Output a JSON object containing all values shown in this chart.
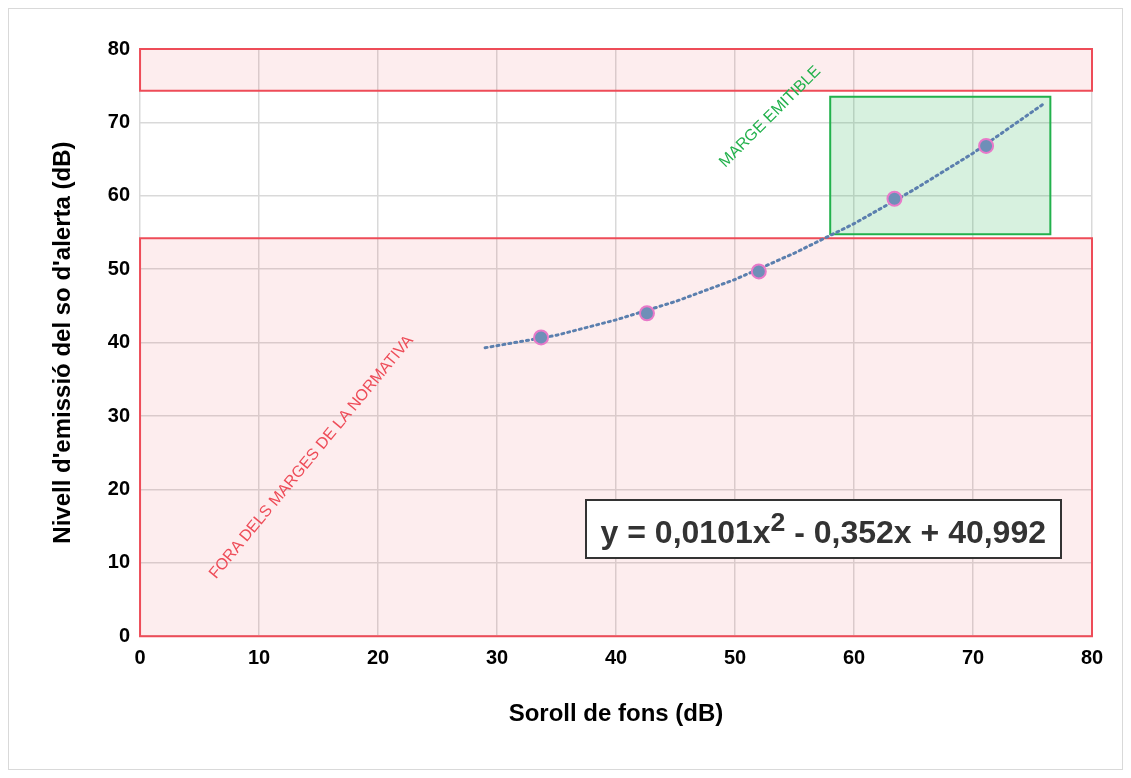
{
  "chart_data": {
    "type": "scatter",
    "xlabel": "Soroll de fons (dB)",
    "ylabel": "Nivell d'emissió del so d'alerta (dB)",
    "xlim": [
      0,
      80
    ],
    "xticks": [
      0,
      10,
      20,
      30,
      40,
      50,
      60,
      70,
      80
    ],
    "ylim": [
      0,
      80
    ],
    "yticks": [
      0,
      10,
      20,
      30,
      40,
      50,
      60,
      70,
      80
    ],
    "grid": true,
    "legend": false,
    "series": [
      {
        "color": "#6f8fb8",
        "marker": "circle",
        "x": [
          33.7,
          42.6,
          52.0,
          63.4,
          71.1
        ],
        "values": [
          40.7,
          44.0,
          49.7,
          59.6,
          66.8
        ]
      },
      {
        "type": "line",
        "color": "#5b7fae",
        "marker": "none",
        "line_style": "dotted",
        "x": [
          29,
          35,
          40,
          45,
          50,
          55,
          60,
          65,
          70,
          76
        ],
        "values": [
          39.3,
          41.0,
          43.1,
          45.6,
          48.6,
          52.2,
          56.2,
          60.8,
          65.8,
          72.6
        ]
      }
    ],
    "bands": [
      {
        "axis": "y",
        "from": 0,
        "to": 54.2,
        "label": "FORA DELS MARGES DE LA NORMATIVA",
        "color": "#ee4c58"
      },
      {
        "axis": "y",
        "from": 74.3,
        "to": 80,
        "color": "#ee4c58"
      },
      {
        "axis": "x",
        "from": 58,
        "to": 76.5,
        "label": "MARGE EMITIBLE",
        "color": "#22b14c"
      }
    ],
    "annotations": [
      "y = 0,0101x$^{2}$ - 0,352x + 40,992"
    ]
  }
}
